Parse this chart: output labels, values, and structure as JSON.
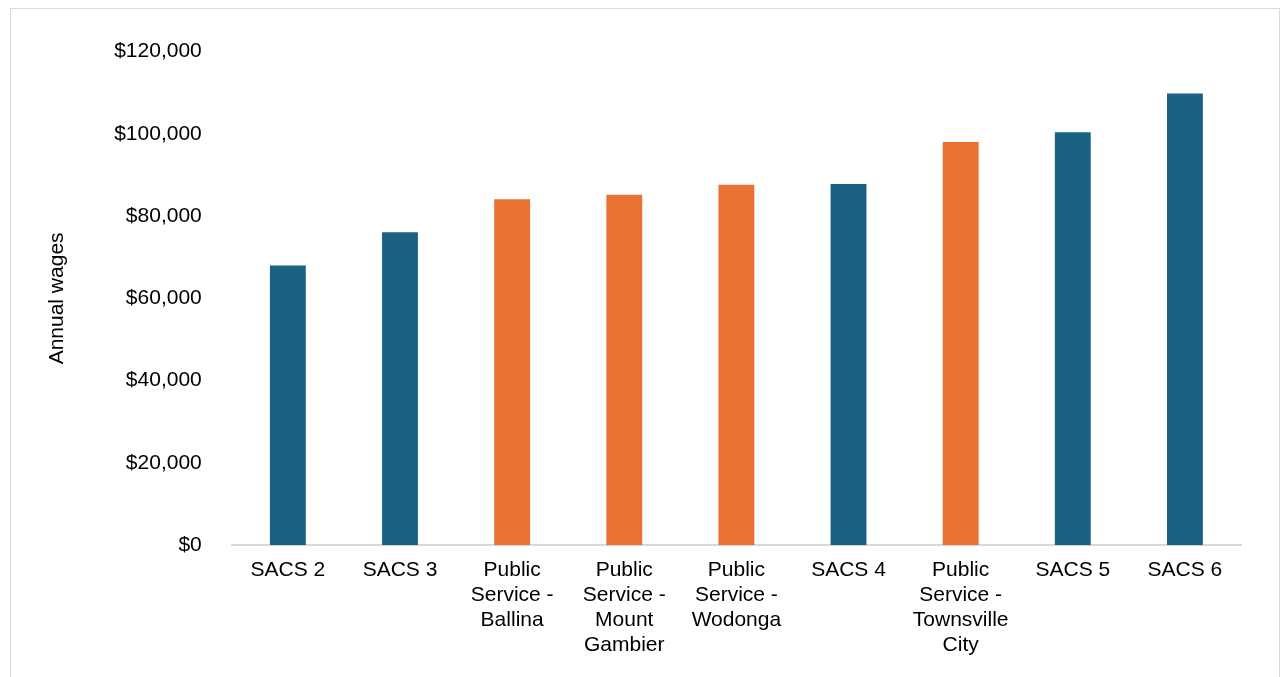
{
  "chart_data": {
    "type": "bar",
    "ylabel": "Annual wages",
    "categories": [
      "SACS 2",
      "SACS 3",
      "Public Service - Ballina",
      "Public Service - Mount Gambier",
      "Public Service - Wodonga",
      "SACS 4",
      "Public Service - Townsville City",
      "SACS 5",
      "SACS 6"
    ],
    "values": [
      68000,
      76100,
      84100,
      85200,
      87600,
      87800,
      98000,
      100400,
      109800
    ],
    "colors": [
      "#1a6284",
      "#1a6284",
      "#ea7132",
      "#ea7132",
      "#ea7132",
      "#1a6284",
      "#ea7132",
      "#1a6284",
      "#1a6284"
    ],
    "ylim": [
      0,
      120000
    ],
    "yticks": [
      {
        "value": 0,
        "label": "$0"
      },
      {
        "value": 20000,
        "label": "$20,000"
      },
      {
        "value": 40000,
        "label": "$40,000"
      },
      {
        "value": 60000,
        "label": "$60,000"
      },
      {
        "value": 80000,
        "label": "$80,000"
      },
      {
        "value": 100000,
        "label": "$100,000"
      },
      {
        "value": 120000,
        "label": "$120,000"
      }
    ],
    "grid": false
  }
}
